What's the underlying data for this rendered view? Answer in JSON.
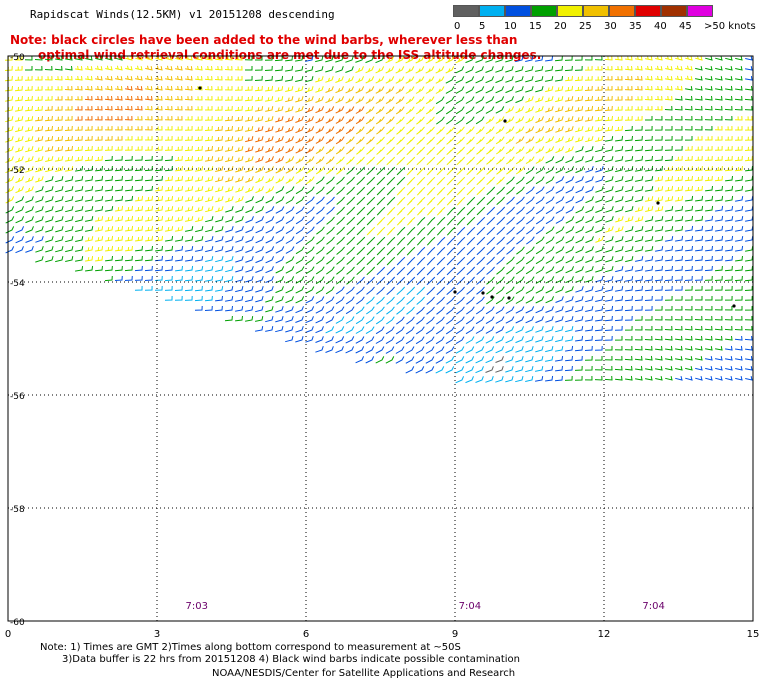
{
  "title": "Rapidscat Winds(12.5KM) v1 20151208 descending",
  "notes": [
    "Note: black circles have been added to the wind barbs, wherever less than",
    "optimal wind retrieval conditions are met due to the ISS altitude changes."
  ],
  "legend": {
    "labels": [
      "0",
      "5",
      "10",
      "15",
      "20",
      "25",
      "30",
      "35",
      "40",
      "45",
      ">50 knots"
    ],
    "colors": [
      "#606060",
      "#00b0f0",
      "#0050e0",
      "#00a000",
      "#f0f000",
      "#f0c000",
      "#f07000",
      "#e00000",
      "#a03000",
      "#e000e0",
      "#500080"
    ]
  },
  "map": {
    "lat_labels": [
      "-50",
      "-52",
      "-54",
      "-56",
      "-58",
      "-60"
    ],
    "lon_labels": [
      "0",
      "3",
      "6",
      "9",
      "12",
      "15"
    ],
    "time_labels": [
      "7:03",
      "7:04",
      "7:04"
    ]
  },
  "chart_data": {
    "type": "wind-barb-map",
    "lat_range": [
      -60,
      -50
    ],
    "lon_range": [
      0,
      15
    ],
    "grid": true,
    "time_markers": [
      {
        "lon": 3.8,
        "time": "7:03"
      },
      {
        "lon": 9.3,
        "time": "7:04"
      },
      {
        "lon": 13.0,
        "time": "7:04"
      }
    ]
  },
  "footer": {
    "line1": "Note: 1) Times are GMT 2)Times along bottom correspond to measurement at ~50S",
    "line2": "3)Data buffer is 22 hrs from 20151208 4) Black wind barbs indicate possible contamination",
    "line3": "NOAA/NESDIS/Center for Satellite Applications and Research"
  }
}
